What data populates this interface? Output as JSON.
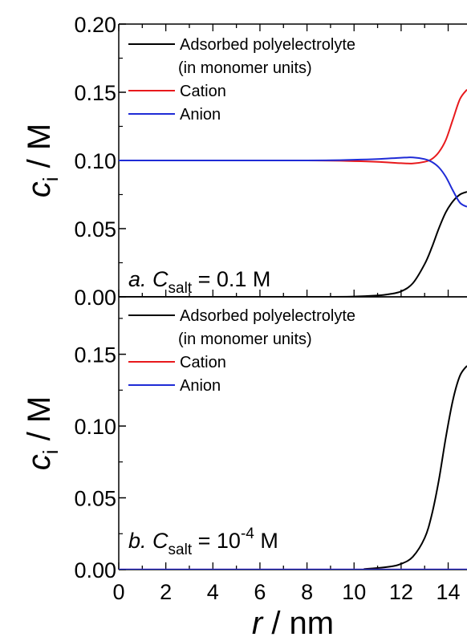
{
  "chart_data": [
    {
      "type": "line",
      "panel_label": "a",
      "annotation": {
        "letter": "a.",
        "symbol": "C",
        "subscript": "salt",
        "equals": "= 0.1 M",
        "superscript": ""
      },
      "xlabel": {
        "var": "r",
        "rest": " / nm"
      },
      "ylabel": {
        "var": "c",
        "sub": "i",
        "rest": " / M"
      },
      "xlim": [
        0,
        14.8
      ],
      "ylim": [
        0,
        0.2
      ],
      "xticks": [],
      "yticks": [
        "0.00",
        "0.05",
        "0.10",
        "0.15",
        "0.20"
      ],
      "yticks_values": [
        0,
        0.05,
        0.1,
        0.15,
        0.2
      ],
      "legend": [
        {
          "label_lines": [
            "Adsorbed polyelectrolyte",
            "(in monomer units)"
          ],
          "color": "#000000"
        },
        {
          "label_lines": [
            "Cation"
          ],
          "color": "#e8191c"
        },
        {
          "label_lines": [
            "Anion"
          ],
          "color": "#1f2bd6"
        }
      ],
      "series": [
        {
          "color": "#000000",
          "x": [
            0,
            8,
            10,
            11,
            11.5,
            12,
            12.5,
            13,
            13.3,
            13.6,
            13.9,
            14.2,
            14.5,
            14.8
          ],
          "y": [
            0,
            0,
            0.0002,
            0.001,
            0.002,
            0.004,
            0.01,
            0.024,
            0.036,
            0.05,
            0.062,
            0.07,
            0.075,
            0.077
          ]
        },
        {
          "color": "#e8191c",
          "x": [
            0,
            8,
            10,
            11,
            12,
            12.5,
            13,
            13.3,
            13.6,
            13.9,
            14.2,
            14.5,
            14.8
          ],
          "y": [
            0.1,
            0.1,
            0.0995,
            0.099,
            0.098,
            0.0978,
            0.099,
            0.101,
            0.106,
            0.115,
            0.13,
            0.145,
            0.152
          ]
        },
        {
          "color": "#1f2bd6",
          "x": [
            0,
            8,
            10,
            11,
            12,
            12.5,
            13,
            13.3,
            13.6,
            13.9,
            14.2,
            14.5,
            14.8
          ],
          "y": [
            0.1,
            0.1,
            0.1005,
            0.101,
            0.102,
            0.1022,
            0.101,
            0.099,
            0.095,
            0.088,
            0.078,
            0.069,
            0.066
          ]
        }
      ]
    },
    {
      "type": "line",
      "panel_label": "b",
      "annotation": {
        "letter": "b.",
        "symbol": "C",
        "subscript": "salt",
        "equals": "= 10",
        "superscript": "-4",
        "unit": " M"
      },
      "xlabel": {
        "var": "r",
        "rest": " / nm"
      },
      "ylabel": {
        "var": "c",
        "sub": "i",
        "rest": " / M"
      },
      "xlim": [
        0,
        14.8
      ],
      "ylim": [
        0,
        0.19
      ],
      "xticks": [
        "0",
        "2",
        "4",
        "6",
        "8",
        "10",
        "12",
        "14"
      ],
      "xticks_values": [
        0,
        2,
        4,
        6,
        8,
        10,
        12,
        14
      ],
      "yticks": [
        "0.00",
        "0.05",
        "0.10",
        "0.15"
      ],
      "yticks_values": [
        0,
        0.05,
        0.1,
        0.15
      ],
      "legend": [
        {
          "label_lines": [
            "Adsorbed polyelectrolyte",
            "(in monomer units)"
          ],
          "color": "#000000"
        },
        {
          "label_lines": [
            "Cation"
          ],
          "color": "#e8191c"
        },
        {
          "label_lines": [
            "Anion"
          ],
          "color": "#1f2bd6"
        }
      ],
      "series": [
        {
          "color": "#000000",
          "x": [
            0,
            9.5,
            10.5,
            11.5,
            12,
            12.5,
            13,
            13.3,
            13.6,
            13.9,
            14.2,
            14.5,
            14.8
          ],
          "y": [
            0,
            0,
            0.0005,
            0.002,
            0.004,
            0.009,
            0.022,
            0.038,
            0.062,
            0.092,
            0.118,
            0.135,
            0.142
          ]
        },
        {
          "color": "#e8191c",
          "x": [
            0,
            14.8
          ],
          "y": [
            0.0001,
            0.0001
          ]
        },
        {
          "color": "#1f2bd6",
          "x": [
            0,
            14.8
          ],
          "y": [
            0.0001,
            0.0001
          ]
        }
      ]
    }
  ]
}
